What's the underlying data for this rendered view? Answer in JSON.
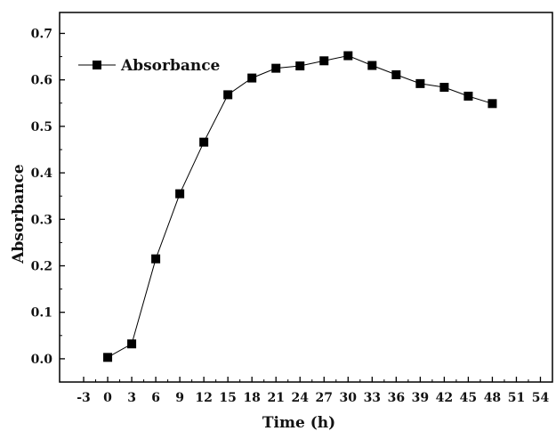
{
  "chart_data": {
    "type": "line",
    "title": "",
    "xlabel": "Time (h)",
    "ylabel": "Absorbance",
    "xlim": [
      -6,
      55.5
    ],
    "ylim": [
      -0.05,
      0.745
    ],
    "xticks": [
      -3,
      0,
      3,
      6,
      9,
      12,
      15,
      18,
      21,
      24,
      27,
      30,
      33,
      36,
      39,
      42,
      45,
      48,
      51,
      54
    ],
    "yticks": [
      0.0,
      0.1,
      0.2,
      0.3,
      0.4,
      0.5,
      0.6,
      0.7
    ],
    "ytick_labels": [
      "0.0",
      "0.1",
      "0.2",
      "0.3",
      "0.4",
      "0.5",
      "0.6",
      "0.7"
    ],
    "grid": false,
    "legend_position": "top-left",
    "series": [
      {
        "name": "Absorbance",
        "color": "#000000",
        "marker": "square",
        "x": [
          0,
          3,
          6,
          9,
          12,
          15,
          18,
          21,
          24,
          27,
          30,
          33,
          36,
          39,
          42,
          45,
          48
        ],
        "y": [
          0.003,
          0.032,
          0.215,
          0.355,
          0.466,
          0.568,
          0.604,
          0.625,
          0.63,
          0.641,
          0.652,
          0.631,
          0.611,
          0.592,
          0.584,
          0.565,
          0.549
        ]
      }
    ]
  }
}
